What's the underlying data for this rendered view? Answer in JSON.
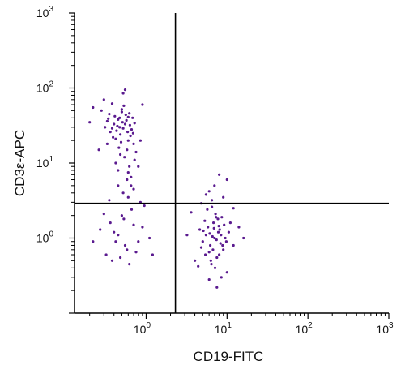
{
  "chart_data": {
    "type": "scatter",
    "title": "",
    "xlabel": "CD19-FITC",
    "ylabel": "CD3ε-APC",
    "x_scale": "log",
    "y_scale": "log",
    "xlim": [
      0.13,
      1000
    ],
    "ylim": [
      0.1,
      1000
    ],
    "x_ticks": [
      {
        "base": "10",
        "exp": "0",
        "value": 1
      },
      {
        "base": "10",
        "exp": "1",
        "value": 10
      },
      {
        "base": "10",
        "exp": "2",
        "value": 100
      },
      {
        "base": "10",
        "exp": "3",
        "value": 1000
      }
    ],
    "y_ticks": [
      {
        "base": "10",
        "exp": "0",
        "value": 1
      },
      {
        "base": "10",
        "exp": "1",
        "value": 10
      },
      {
        "base": "10",
        "exp": "2",
        "value": 100
      },
      {
        "base": "10",
        "exp": "3",
        "value": 1000
      }
    ],
    "quadrant_gates": {
      "x": 2.3,
      "y": 2.9
    },
    "grid": false,
    "legend": "none",
    "dot_color": "#5a1a8f",
    "series": [
      {
        "points": [
          [
            0.28,
            50
          ],
          [
            0.36,
            26
          ],
          [
            0.45,
            38
          ],
          [
            0.52,
            29
          ],
          [
            0.6,
            20
          ],
          [
            0.41,
            42
          ],
          [
            0.55,
            33
          ],
          [
            0.7,
            18
          ],
          [
            0.48,
            24
          ],
          [
            0.33,
            36
          ],
          [
            0.62,
            46
          ],
          [
            0.44,
            31
          ],
          [
            0.5,
            52
          ],
          [
            0.58,
            15
          ],
          [
            0.39,
            22
          ],
          [
            0.66,
            28
          ],
          [
            0.47,
            40
          ],
          [
            0.54,
            12
          ],
          [
            0.31,
            30
          ],
          [
            0.72,
            34
          ],
          [
            0.43,
            27
          ],
          [
            0.57,
            37
          ],
          [
            0.35,
            45
          ],
          [
            0.64,
            23
          ],
          [
            0.49,
            19
          ],
          [
            0.53,
            58
          ],
          [
            0.4,
            33
          ],
          [
            0.6,
            41
          ],
          [
            0.46,
            16
          ],
          [
            0.69,
            25
          ],
          [
            0.38,
            29
          ],
          [
            0.51,
            35
          ],
          [
            0.56,
            44
          ],
          [
            0.42,
            21
          ],
          [
            0.75,
            14
          ],
          [
            0.47,
            30
          ],
          [
            0.59,
            26
          ],
          [
            0.34,
            39
          ],
          [
            0.63,
            32
          ],
          [
            0.5,
            48
          ],
          [
            0.2,
            35
          ],
          [
            0.26,
            15
          ],
          [
            0.8,
            9
          ],
          [
            0.9,
            60
          ],
          [
            0.45,
            8
          ],
          [
            0.58,
            6
          ],
          [
            0.72,
            11
          ],
          [
            0.3,
            70
          ],
          [
            0.52,
            85
          ],
          [
            0.65,
            5
          ],
          [
            0.22,
            55
          ],
          [
            0.85,
            20
          ],
          [
            0.42,
            10
          ],
          [
            0.6,
            7.5
          ],
          [
            0.38,
            62
          ],
          [
            0.55,
            95
          ],
          [
            0.68,
            40
          ],
          [
            0.48,
            13
          ],
          [
            0.33,
            18
          ],
          [
            0.62,
            9
          ],
          [
            0.4,
            1.2
          ],
          [
            0.55,
            0.8
          ],
          [
            0.7,
            1.5
          ],
          [
            0.32,
            0.6
          ],
          [
            0.5,
            2
          ],
          [
            0.62,
            0.45
          ],
          [
            0.45,
            1.1
          ],
          [
            0.8,
            0.9
          ],
          [
            0.36,
            1.6
          ],
          [
            0.58,
            0.7
          ],
          [
            0.27,
            1.3
          ],
          [
            0.66,
            2.4
          ],
          [
            0.48,
            0.55
          ],
          [
            0.9,
            1.4
          ],
          [
            0.42,
            0.9
          ],
          [
            0.3,
            2.1
          ],
          [
            0.75,
            0.65
          ],
          [
            0.53,
            1.8
          ],
          [
            0.38,
            0.5
          ],
          [
            1.1,
            1.0
          ],
          [
            0.6,
            3.5
          ],
          [
            0.7,
            4.5
          ],
          [
            0.45,
            5
          ],
          [
            0.85,
            3
          ],
          [
            0.52,
            4
          ],
          [
            0.95,
            2.7
          ],
          [
            0.65,
            6.5
          ],
          [
            0.35,
            3.2
          ],
          [
            1.2,
            0.6
          ],
          [
            0.22,
            0.9
          ],
          [
            7.0,
            1.0
          ],
          [
            6.2,
            0.8
          ],
          [
            8.1,
            1.3
          ],
          [
            5.5,
            1.1
          ],
          [
            9.0,
            0.7
          ],
          [
            6.8,
            1.6
          ],
          [
            7.5,
            0.55
          ],
          [
            5.0,
            0.9
          ],
          [
            8.6,
            1.9
          ],
          [
            6.4,
            0.45
          ],
          [
            7.8,
            1.2
          ],
          [
            5.8,
            1.4
          ],
          [
            9.5,
            1.0
          ],
          [
            6.0,
            0.65
          ],
          [
            7.2,
            2.1
          ],
          [
            8.3,
            0.85
          ],
          [
            5.3,
            1.7
          ],
          [
            6.6,
            1.05
          ],
          [
            10.5,
            1.2
          ],
          [
            4.8,
            0.75
          ],
          [
            7.4,
            0.95
          ],
          [
            6.9,
            1.35
          ],
          [
            8.0,
            0.6
          ],
          [
            5.7,
            2.4
          ],
          [
            9.2,
            1.5
          ],
          [
            6.3,
            0.5
          ],
          [
            7.7,
            1.8
          ],
          [
            5.1,
            1.25
          ],
          [
            8.8,
            0.8
          ],
          [
            6.1,
            1.15
          ],
          [
            7.1,
            0.4
          ],
          [
            6.5,
            2.6
          ],
          [
            8.4,
            1.1
          ],
          [
            5.4,
            0.6
          ],
          [
            9.8,
            0.9
          ],
          [
            7.9,
            1.45
          ],
          [
            4.6,
            1.3
          ],
          [
            6.7,
            0.7
          ],
          [
            11,
            1.6
          ],
          [
            7.3,
            1.9
          ],
          [
            3.2,
            1.1
          ],
          [
            12,
            0.8
          ],
          [
            4.0,
            0.5
          ],
          [
            14,
            1.4
          ],
          [
            3.6,
            2.2
          ],
          [
            10,
            0.35
          ],
          [
            8.5,
            0.3
          ],
          [
            6,
            0.28
          ],
          [
            16,
            1.0
          ],
          [
            4.4,
            0.42
          ],
          [
            9,
            3.5
          ],
          [
            7,
            5
          ],
          [
            6,
            4.2
          ],
          [
            8,
            7
          ],
          [
            5.5,
            3.8
          ],
          [
            10,
            6
          ],
          [
            7.5,
            0.22
          ],
          [
            12,
            2.5
          ],
          [
            6.5,
            3.2
          ],
          [
            4.8,
            2.9
          ]
        ]
      }
    ]
  }
}
